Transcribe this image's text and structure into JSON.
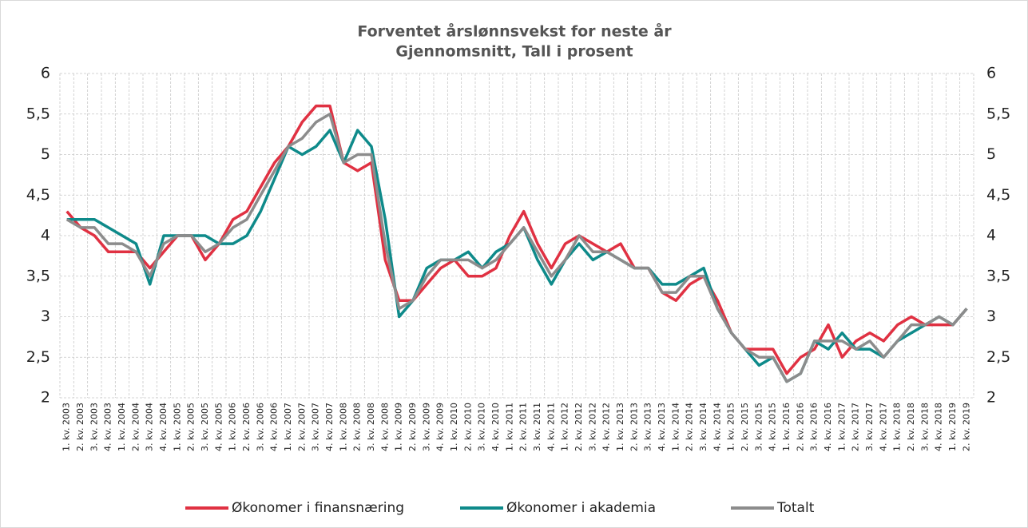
{
  "chart_data": {
    "type": "line",
    "title": "Forventet årslønnsvekst for neste år",
    "subtitle": "Gjennomsnitt, Tall i prosent",
    "categories": [
      "1. kv. 2003",
      "2. kv. 2003",
      "3. kv. 2003",
      "4. kv. 2003",
      "1. kv. 2004",
      "2. kv. 2004",
      "3. kv. 2004",
      "4. kv. 2004",
      "1. kv. 2005",
      "2. kv. 2005",
      "3. kv. 2005",
      "4. kv. 2005",
      "1. kv. 2006",
      "2. kv. 2006",
      "3. kv. 2006",
      "4. kv. 2006",
      "1. kv. 2007",
      "2. kv. 2007",
      "3. kv. 2007",
      "4. kv. 2007",
      "1. kv. 2008",
      "2. kv. 2008",
      "3. kv. 2008",
      "4. kv. 2008",
      "1. kv. 2009",
      "2. kv. 2009",
      "3. kv. 2009",
      "4. kv. 2009",
      "1. kv. 2010",
      "2. kv. 2010",
      "3. kv. 2010",
      "4. kv. 2010",
      "1. kv. 2011",
      "2. kv. 2011",
      "3. kv. 2011",
      "4. kv. 2011",
      "1. kv. 2012",
      "2. kv. 2012",
      "3. kv. 2012",
      "4. kv. 2012",
      "1. kv. 2013",
      "2. kv. 2013",
      "3. kv. 2013",
      "4. kv. 2013",
      "1. kv. 2014",
      "2. kv. 2014",
      "3. kv. 2014",
      "4. kv. 2014",
      "1. kv. 2015",
      "2. kv. 2015",
      "3. kv. 2015",
      "4. kv. 2015",
      "1. kv. 2016",
      "2. kv. 2016",
      "3. kv. 2016",
      "4. kv. 2016",
      "1. kv. 2017",
      "2. kv. 2017",
      "3. kv. 2017",
      "4. kv. 2017",
      "1. kv. 2018",
      "2. kv. 2018",
      "3. kv. 2018",
      "4. kv. 2018",
      "1. kv. 2019",
      "2. kv. 2019"
    ],
    "series": [
      {
        "name": "Økonomer i finansnæring",
        "color": "#e03142",
        "values": [
          4.3,
          4.1,
          4.0,
          3.8,
          3.8,
          3.8,
          3.6,
          3.8,
          4.0,
          4.0,
          3.7,
          3.9,
          4.2,
          4.3,
          4.6,
          4.9,
          5.1,
          5.4,
          5.6,
          5.6,
          4.9,
          4.8,
          4.9,
          3.7,
          3.2,
          3.2,
          3.4,
          3.6,
          3.7,
          3.5,
          3.5,
          3.6,
          4.0,
          4.3,
          3.9,
          3.6,
          3.9,
          4.0,
          3.9,
          3.8,
          3.9,
          3.6,
          3.6,
          3.3,
          3.2,
          3.4,
          3.5,
          3.2,
          2.8,
          2.6,
          2.6,
          2.6,
          2.3,
          2.5,
          2.6,
          2.9,
          2.5,
          2.7,
          2.8,
          2.7,
          2.9,
          3.0,
          2.9,
          2.9,
          2.9,
          3.1
        ]
      },
      {
        "name": "Økonomer i akademia",
        "color": "#0e8a8a",
        "values": [
          4.2,
          4.2,
          4.2,
          4.1,
          4.0,
          3.9,
          3.4,
          4.0,
          4.0,
          4.0,
          4.0,
          3.9,
          3.9,
          4.0,
          4.3,
          4.7,
          5.1,
          5.0,
          5.1,
          5.3,
          4.9,
          5.3,
          5.1,
          4.2,
          3.0,
          3.2,
          3.6,
          3.7,
          3.7,
          3.8,
          3.6,
          3.8,
          3.9,
          4.1,
          3.7,
          3.4,
          3.7,
          3.9,
          3.7,
          3.8,
          3.7,
          3.6,
          3.6,
          3.4,
          3.4,
          3.5,
          3.6,
          3.1,
          2.8,
          2.6,
          2.4,
          2.5,
          2.2,
          2.3,
          2.7,
          2.6,
          2.8,
          2.6,
          2.6,
          2.5,
          2.7,
          2.8,
          2.9,
          3.0,
          2.9,
          3.1
        ]
      },
      {
        "name": "Totalt",
        "color": "#8c8c8c",
        "values": [
          4.2,
          4.1,
          4.1,
          3.9,
          3.9,
          3.8,
          3.5,
          3.9,
          4.0,
          4.0,
          3.8,
          3.9,
          4.1,
          4.2,
          4.5,
          4.8,
          5.1,
          5.2,
          5.4,
          5.5,
          4.9,
          5.0,
          5.0,
          3.9,
          3.1,
          3.2,
          3.5,
          3.7,
          3.7,
          3.7,
          3.6,
          3.7,
          3.9,
          4.1,
          3.8,
          3.5,
          3.7,
          4.0,
          3.8,
          3.8,
          3.7,
          3.6,
          3.6,
          3.3,
          3.3,
          3.5,
          3.5,
          3.1,
          2.8,
          2.6,
          2.5,
          2.5,
          2.2,
          2.3,
          2.7,
          2.7,
          2.7,
          2.6,
          2.7,
          2.5,
          2.7,
          2.9,
          2.9,
          3.0,
          2.9,
          3.1
        ]
      }
    ],
    "ylim": [
      2,
      6
    ],
    "yticks": [
      2,
      {
        "value": 2.5,
        "label": "2,5"
      },
      3,
      {
        "value": 3.5,
        "label": "3,5"
      },
      4,
      {
        "value": 4.5,
        "label": "4,5"
      },
      5,
      {
        "value": 5.5,
        "label": "5,5"
      },
      6
    ],
    "grid": true
  }
}
